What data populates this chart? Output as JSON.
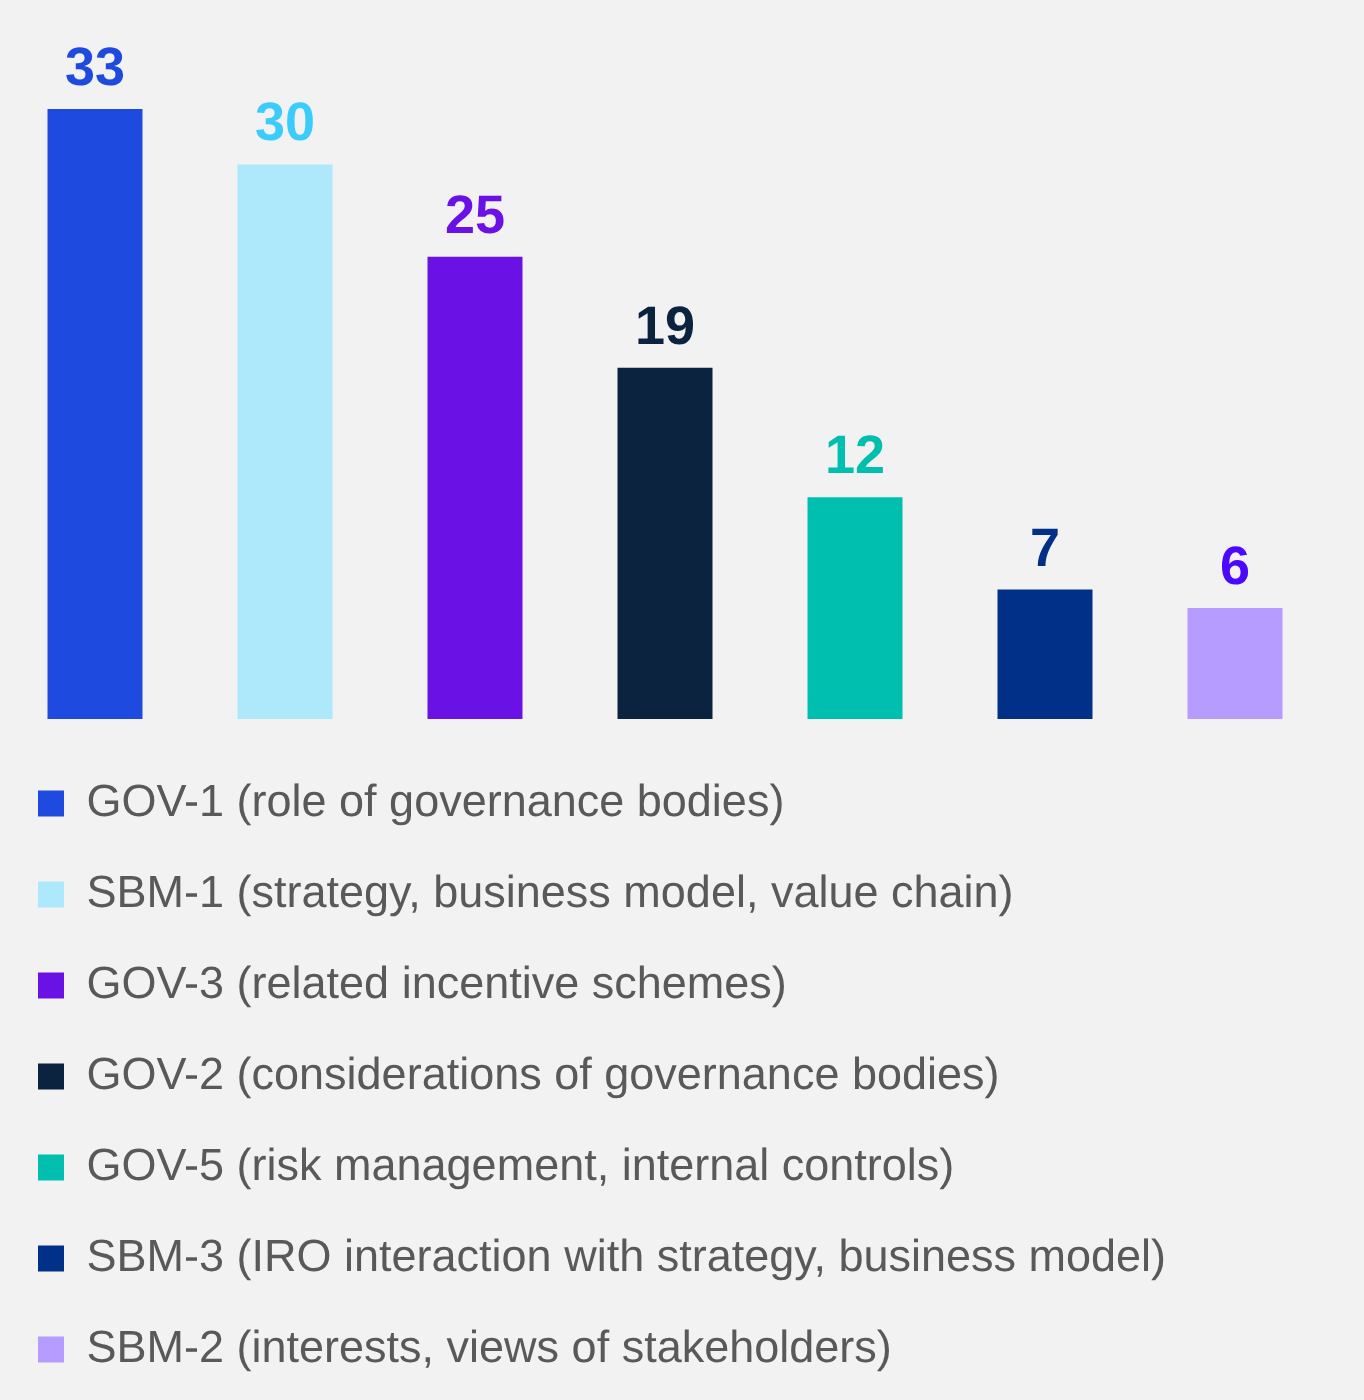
{
  "chart_data": {
    "type": "bar",
    "categories": [
      null,
      null,
      null,
      null,
      null,
      null,
      null
    ],
    "stacked": true,
    "series": [
      {
        "name": "GOV-1 (role of governance bodies)",
        "color": "#1f4ae0",
        "values": [
          33,
          null,
          null,
          null,
          null,
          null,
          null
        ]
      },
      {
        "name": "SBM-1 (strategy, business model, value chain)",
        "color": "#aee8fb",
        "values": [
          null,
          30,
          null,
          null,
          null,
          null,
          null
        ]
      },
      {
        "name": "GOV-3 (related incentive schemes)",
        "color": "#6a12e6",
        "values": [
          null,
          null,
          25,
          null,
          null,
          null,
          null
        ]
      },
      {
        "name": "GOV-2 (considerations of governance bodies)",
        "color": "#0c2340",
        "values": [
          null,
          null,
          null,
          19,
          null,
          null,
          null
        ]
      },
      {
        "name": "GOV-5 (risk management, internal controls)",
        "color": "#00bfae",
        "values": [
          null,
          null,
          null,
          null,
          12,
          null,
          null
        ]
      },
      {
        "name": "SBM-3 (IRO interaction with strategy, business model)",
        "color": "#003087",
        "values": [
          null,
          null,
          null,
          null,
          null,
          7,
          null
        ]
      },
      {
        "name": "SBM-2 (interests, views of stakeholders)",
        "color": "#b79cff",
        "values": [
          null,
          null,
          null,
          null,
          null,
          null,
          6
        ]
      }
    ],
    "data_labels": true,
    "legend": "bottom",
    "grid": false
  }
}
